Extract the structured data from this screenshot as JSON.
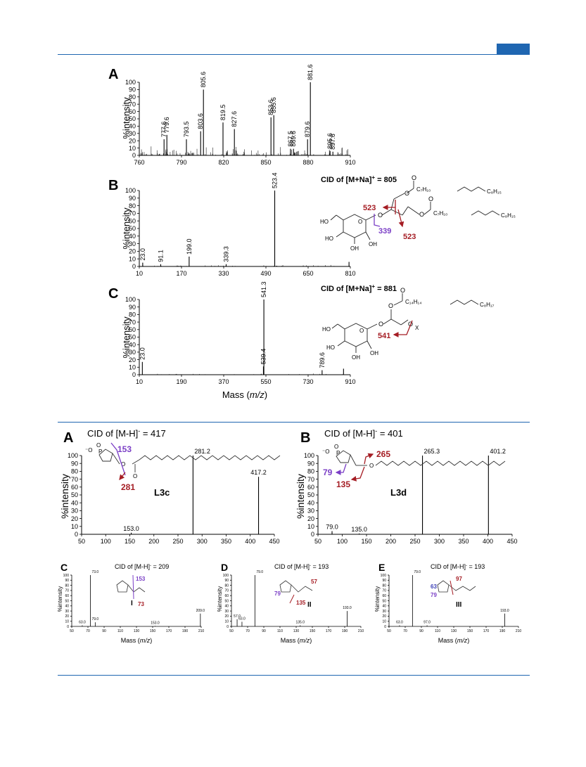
{
  "figures": {
    "top": {
      "A": {
        "letter": "A",
        "ylabel": "%intensity",
        "yticks": [
          "0",
          "10",
          "20",
          "30",
          "40",
          "50",
          "60",
          "70",
          "80",
          "90",
          "100"
        ],
        "xticks": [
          "760",
          "790",
          "820",
          "850",
          "880",
          "910"
        ],
        "peaks": [
          {
            "mz": 777.6,
            "label": "777.6"
          },
          {
            "mz": 779.6,
            "label": "779.6"
          },
          {
            "mz": 793.5,
            "label": "793.5"
          },
          {
            "mz": 803.6,
            "label": "803.6"
          },
          {
            "mz": 805.6,
            "label": "805.6"
          },
          {
            "mz": 819.5,
            "label": "819.5"
          },
          {
            "mz": 827.6,
            "label": "827.6"
          },
          {
            "mz": 853.6,
            "label": "853.6"
          },
          {
            "mz": 855.6,
            "label": "855.6"
          },
          {
            "mz": 867.5,
            "label": "867.5"
          },
          {
            "mz": 869.6,
            "label": "869.6"
          },
          {
            "mz": 879.6,
            "label": "879.6"
          },
          {
            "mz": 881.6,
            "label": "881.6"
          },
          {
            "mz": 895.6,
            "label": "895.6"
          },
          {
            "mz": 897.6,
            "label": "897.6"
          }
        ]
      },
      "B": {
        "letter": "B",
        "title": "CID of [M+Na]",
        "title_sup": "+",
        "title_tail": " = 805",
        "ylabel": "%intensity",
        "yticks": [
          "0",
          "10",
          "20",
          "30",
          "40",
          "50",
          "60",
          "70",
          "80",
          "90",
          "100"
        ],
        "xticks": [
          "10",
          "170",
          "330",
          "490",
          "650",
          "810"
        ],
        "peaks": [
          {
            "mz": 23.0,
            "label": "23.0"
          },
          {
            "mz": 91.1,
            "label": "91.1"
          },
          {
            "mz": 199.0,
            "label": "199.0"
          },
          {
            "mz": 339.3,
            "label": "339.3"
          },
          {
            "mz": 523.4,
            "label": "523.4"
          }
        ],
        "structure": {
          "chain": "C₇H₁₀",
          "chain_end": "C₈H₁₅",
          "frag_a": "523",
          "frag_b": "339",
          "frag_c": "523",
          "ho": "HO",
          "oh1": "HO",
          "oh2": "OH",
          "oh3": "OH"
        }
      },
      "C": {
        "letter": "C",
        "title": "CID of [M+Na]",
        "title_sup": "+",
        "title_tail": " = 881",
        "ylabel": "%intensity",
        "xlabel": "Mass (m/z)",
        "yticks": [
          "0",
          "10",
          "20",
          "30",
          "40",
          "50",
          "60",
          "70",
          "80",
          "90",
          "100"
        ],
        "xticks": [
          "10",
          "190",
          "370",
          "550",
          "730",
          "910"
        ],
        "peaks": [
          {
            "mz": 23.0,
            "label": "23.0"
          },
          {
            "mz": 539.4,
            "label": "539.4"
          },
          {
            "mz": 541.3,
            "label": "541.3"
          },
          {
            "mz": 789.6,
            "label": "789.6"
          }
        ],
        "structure": {
          "chain": "C₁₄H₁₄",
          "chain_end": "C₈H₁₇",
          "frag": "541",
          "x": "X",
          "ho": "HO",
          "oh1": "HO",
          "oh2": "OH",
          "oh3": "OH"
        }
      }
    },
    "bottom": {
      "A": {
        "letter": "A",
        "title": "CID of [M-H]",
        "title_sup": "-",
        "title_tail": " = 417",
        "ylabel": "%intensity",
        "xticks": [
          "50",
          "100",
          "150",
          "200",
          "250",
          "300",
          "350",
          "400",
          "450"
        ],
        "yticks": [
          "0",
          "10",
          "20",
          "30",
          "40",
          "50",
          "60",
          "70",
          "80",
          "90",
          "100"
        ],
        "peaks": [
          {
            "mz": 153.0,
            "label": "153.0"
          },
          {
            "mz": 281.2,
            "label": "281.2"
          },
          {
            "mz": 417.2,
            "label": "417.2"
          }
        ],
        "frag_a": "153",
        "frag_b": "281",
        "compound": "L3c"
      },
      "B": {
        "letter": "B",
        "title": "CID of [M-H]",
        "title_sup": "-",
        "title_tail": " = 401",
        "ylabel": "%intensity",
        "xticks": [
          "50",
          "100",
          "150",
          "200",
          "250",
          "300",
          "350",
          "400",
          "450"
        ],
        "yticks": [
          "0",
          "10",
          "20",
          "30",
          "40",
          "50",
          "60",
          "70",
          "80",
          "90",
          "100"
        ],
        "peaks": [
          {
            "mz": 79.0,
            "label": "79.0"
          },
          {
            "mz": 135.0,
            "label": "135.0"
          },
          {
            "mz": 265.3,
            "label": "265.3"
          },
          {
            "mz": 401.2,
            "label": "401.2"
          }
        ],
        "frag_a": "265",
        "frag_b": "79",
        "frag_c": "135",
        "compound": "L3d"
      },
      "C": {
        "letter": "C",
        "title": "CID of [M-H]",
        "title_sup": "-",
        "title_tail": " = 209",
        "ylabel": "%intensity",
        "xlabel": "Mass (m/z)",
        "xticks": [
          "50",
          "70",
          "90",
          "110",
          "130",
          "150",
          "170",
          "190",
          "210"
        ],
        "yticks": [
          "0",
          "10",
          "20",
          "30",
          "40",
          "50",
          "60",
          "70",
          "80",
          "90",
          "100"
        ],
        "peaks": [
          {
            "mz": 63.0,
            "label": "63.0"
          },
          {
            "mz": 73.0,
            "label": "73.0"
          },
          {
            "mz": 79.0,
            "label": "79.0"
          },
          {
            "mz": 153.0,
            "label": "153.0"
          },
          {
            "mz": 209.0,
            "label": "209.0"
          }
        ],
        "frag_a": "153",
        "frag_b": "73",
        "compound": "I"
      },
      "D": {
        "letter": "D",
        "title": "CID of [M-H]",
        "title_sup": "-",
        "title_tail": " = 193",
        "ylabel": "%intensity",
        "xlabel": "Mass (m/z)",
        "xticks": [
          "50",
          "70",
          "90",
          "110",
          "130",
          "150",
          "170",
          "190",
          "210"
        ],
        "yticks": [
          "0",
          "10",
          "20",
          "30",
          "40",
          "50",
          "60",
          "70",
          "80",
          "90",
          "100"
        ],
        "peaks": [
          {
            "mz": 57.0,
            "label": "57.0"
          },
          {
            "mz": 63.0,
            "label": "63.0"
          },
          {
            "mz": 79.0,
            "label": "79.0"
          },
          {
            "mz": 135.0,
            "label": "135.0"
          },
          {
            "mz": 193.0,
            "label": "193.0"
          }
        ],
        "frag_a": "57",
        "frag_b": "79",
        "frag_c": "135",
        "compound": "II"
      },
      "E": {
        "letter": "E",
        "title": "CID of [M-H]",
        "title_sup": "-",
        "title_tail": " = 193",
        "ylabel": "%intensity",
        "xlabel": "Mass (m/z)",
        "xticks": [
          "50",
          "70",
          "90",
          "110",
          "130",
          "150",
          "170",
          "190",
          "210"
        ],
        "yticks": [
          "0",
          "10",
          "20",
          "30",
          "40",
          "50",
          "60",
          "70",
          "80",
          "90",
          "100"
        ],
        "peaks": [
          {
            "mz": 63.0,
            "label": "63.0"
          },
          {
            "mz": 79.0,
            "label": "79.0"
          },
          {
            "mz": 97.0,
            "label": "97.0"
          },
          {
            "mz": 193.0,
            "label": "193.0"
          }
        ],
        "frag_a": "97",
        "frag_b": "63",
        "frag_c": "79",
        "compound": "III"
      }
    }
  },
  "colors": {
    "rule": "#1f66b1",
    "fragment_red": "#a51d24",
    "fragment_purple": "#7b3fc6",
    "fragment_blue": "#3b3fb6"
  },
  "chart_data": [
    {
      "type": "bar",
      "panel": "top-A",
      "ylabel": "%intensity",
      "xlim": [
        760,
        910
      ],
      "ylim": [
        0,
        100
      ],
      "x": [
        777.6,
        779.6,
        793.5,
        803.6,
        805.6,
        819.5,
        827.6,
        853.6,
        855.6,
        867.5,
        869.6,
        879.6,
        881.6,
        895.6,
        897.6
      ],
      "values": [
        22,
        28,
        22,
        33,
        90,
        45,
        36,
        52,
        55,
        9,
        9,
        22,
        100,
        6,
        5
      ]
    },
    {
      "type": "bar",
      "panel": "top-B",
      "title": "CID of [M+Na]+ = 805",
      "ylabel": "%intensity",
      "xlim": [
        10,
        810
      ],
      "ylim": [
        0,
        100
      ],
      "x": [
        23.0,
        91.1,
        199.0,
        339.3,
        523.4,
        805.0
      ],
      "values": [
        5,
        3,
        13,
        3,
        100,
        6
      ]
    },
    {
      "type": "bar",
      "panel": "top-C",
      "title": "CID of [M+Na]+ = 881",
      "ylabel": "%intensity",
      "xlabel": "Mass (m/z)",
      "xlim": [
        10,
        910
      ],
      "ylim": [
        0,
        100
      ],
      "x": [
        23.0,
        539.4,
        541.3,
        789.6,
        881.0
      ],
      "values": [
        17,
        11,
        100,
        6,
        8
      ]
    },
    {
      "type": "bar",
      "panel": "bottom-A",
      "title": "CID of [M-H]- = 417",
      "ylabel": "%intensity",
      "xlim": [
        50,
        450
      ],
      "ylim": [
        0,
        100
      ],
      "x": [
        153.0,
        281.2,
        417.2
      ],
      "values": [
        2,
        100,
        73
      ]
    },
    {
      "type": "bar",
      "panel": "bottom-B",
      "title": "CID of [M-H]- = 401",
      "ylabel": "%intensity",
      "xlim": [
        50,
        450
      ],
      "ylim": [
        0,
        100
      ],
      "x": [
        79.0,
        135.0,
        265.3,
        401.2
      ],
      "values": [
        4,
        1,
        100,
        100
      ]
    },
    {
      "type": "bar",
      "panel": "bottom-C",
      "title": "CID of [M-H]- = 209",
      "ylabel": "%intensity",
      "xlabel": "Mass (m/z)",
      "xlim": [
        50,
        210
      ],
      "ylim": [
        0,
        100
      ],
      "x": [
        63.0,
        73.0,
        79.0,
        153.0,
        209.0
      ],
      "values": [
        2,
        100,
        8,
        1,
        25
      ]
    },
    {
      "type": "bar",
      "panel": "bottom-D",
      "title": "CID of [M-H]- = 193",
      "ylabel": "%intensity",
      "xlabel": "Mass (m/z)",
      "xlim": [
        50,
        210
      ],
      "ylim": [
        0,
        100
      ],
      "x": [
        57.0,
        63.0,
        79.0,
        135.0,
        193.0
      ],
      "values": [
        14,
        9,
        100,
        2,
        30
      ]
    },
    {
      "type": "bar",
      "panel": "bottom-E",
      "title": "CID of [M-H]- = 193",
      "ylabel": "%intensity",
      "xlabel": "Mass (m/z)",
      "xlim": [
        50,
        210
      ],
      "ylim": [
        0,
        100
      ],
      "x": [
        63.0,
        79.0,
        97.0,
        193.0
      ],
      "values": [
        2,
        100,
        2,
        25
      ]
    }
  ]
}
